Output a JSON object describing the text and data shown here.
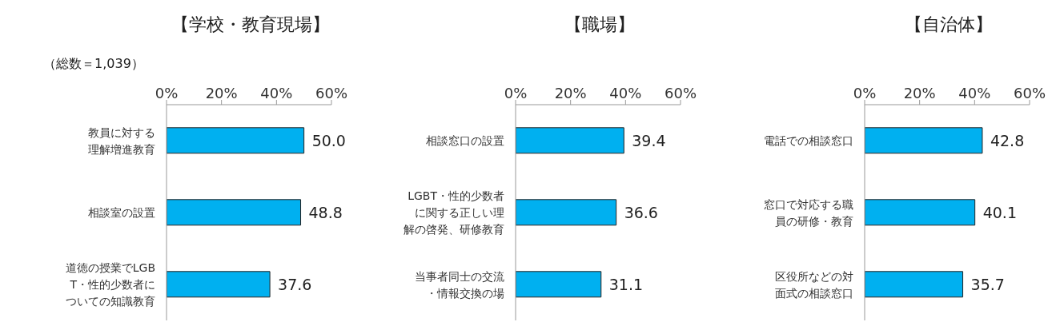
{
  "chart_data": [
    {
      "type": "bar",
      "orientation": "horizontal",
      "title": "【学校・教育現場】",
      "annotations": [
        "（総数＝1,039）"
      ],
      "categories": [
        "教員に対する理解増進教育",
        "相談室の設置",
        "道徳の授業でLGBT・性的少数者についての知識教育"
      ],
      "values": [
        50.0,
        48.8,
        37.6
      ],
      "value_labels": [
        "50.0",
        "48.8",
        "37.6"
      ],
      "color": "#00b0f0",
      "xlim": [
        0,
        60
      ],
      "xticks": [
        {
          "value": 0,
          "label": "0%"
        },
        {
          "value": 20,
          "label": "20%"
        },
        {
          "value": 40,
          "label": "40%"
        },
        {
          "value": 60,
          "label": "60%"
        }
      ],
      "grid": false
    },
    {
      "type": "bar",
      "orientation": "horizontal",
      "title": "【職場】",
      "categories": [
        "相談窓口の設置",
        "LGBT・性的少数者に関する正しい理解の啓発、研修教育",
        "当事者同士の交流・情報交換の場"
      ],
      "values": [
        39.4,
        36.6,
        31.1
      ],
      "value_labels": [
        "39.4",
        "36.6",
        "31.1"
      ],
      "color": "#00b0f0",
      "xlim": [
        0,
        60
      ],
      "xticks": [
        {
          "value": 0,
          "label": "0%"
        },
        {
          "value": 20,
          "label": "20%"
        },
        {
          "value": 40,
          "label": "40%"
        },
        {
          "value": 60,
          "label": "60%"
        }
      ],
      "grid": false
    },
    {
      "type": "bar",
      "orientation": "horizontal",
      "title": "【自治体】",
      "categories": [
        "電話での相談窓口",
        "窓口で対応する職員の研修・教育",
        "区役所などの対面式の相談窓口"
      ],
      "values": [
        42.8,
        40.1,
        35.7
      ],
      "value_labels": [
        "42.8",
        "40.1",
        "35.7"
      ],
      "color": "#00b0f0",
      "xlim": [
        0,
        60
      ],
      "xticks": [
        {
          "value": 0,
          "label": "0%"
        },
        {
          "value": 20,
          "label": "20%"
        },
        {
          "value": 40,
          "label": "40%"
        },
        {
          "value": 60,
          "label": "60%"
        }
      ],
      "grid": false
    }
  ]
}
